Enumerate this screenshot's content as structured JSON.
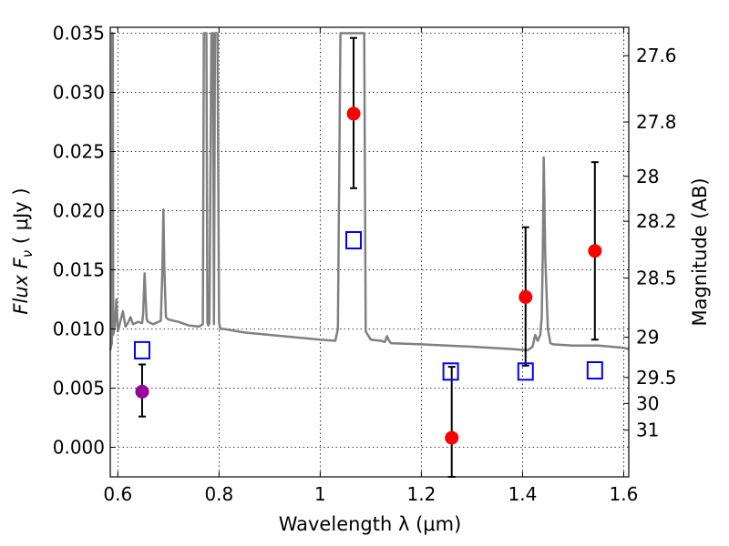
{
  "chart_data": {
    "type": "line",
    "title": "",
    "xlabel": "Wavelength  λ (μm)",
    "ylabel": "Flux  F",
    "ylabel_sub": "ν",
    "ylabel_unit": " ( μJy )",
    "y2label": "Magnitude (AB)",
    "xlim": [
      0.585,
      1.61
    ],
    "ylim": [
      -0.0025,
      0.0355
    ],
    "grid": true,
    "x_ticks": [
      0.6,
      0.8,
      1.0,
      1.2,
      1.4,
      1.6
    ],
    "x_tick_labels": [
      "0.6",
      "0.8",
      "1",
      "1.2",
      "1.4",
      "1.6"
    ],
    "y_ticks": [
      0.0,
      0.005,
      0.01,
      0.015,
      0.02,
      0.025,
      0.03,
      0.035
    ],
    "y_tick_labels": [
      "0.000",
      "0.005",
      "0.010",
      "0.015",
      "0.020",
      "0.025",
      "0.030",
      "0.035"
    ],
    "y2_ticks": [
      {
        "flux": 0.00145,
        "label": "31"
      },
      {
        "flux": 0.0037,
        "label": "30"
      },
      {
        "flux": 0.0059,
        "label": "29.5"
      },
      {
        "flux": 0.0093,
        "label": "29"
      },
      {
        "flux": 0.0143,
        "label": "28.5"
      },
      {
        "flux": 0.0191,
        "label": "28.2"
      },
      {
        "flux": 0.0229,
        "label": "28"
      },
      {
        "flux": 0.0275,
        "label": "27.8"
      },
      {
        "flux": 0.0331,
        "label": "27.6"
      }
    ],
    "colors": {
      "sed": "#808080",
      "observed": "#ff0000",
      "observed_alt": "#990099",
      "model": "#0000ff",
      "errorbar": "#000000",
      "grid": "#000000"
    },
    "series": [
      {
        "kind": "sed_line",
        "x": [
          0.585,
          0.588,
          0.589,
          0.59,
          0.591,
          0.594,
          0.597,
          0.6,
          0.61,
          0.615,
          0.62,
          0.625,
          0.63,
          0.64,
          0.648,
          0.65,
          0.653,
          0.655,
          0.657,
          0.66,
          0.67,
          0.68,
          0.685,
          0.688,
          0.69,
          0.692,
          0.695,
          0.7,
          0.72,
          0.74,
          0.76,
          0.768,
          0.77,
          0.772,
          0.775,
          0.777,
          0.779,
          0.781,
          0.785,
          0.788,
          0.79,
          0.792,
          0.795,
          0.797,
          0.8,
          0.803,
          0.81,
          0.85,
          0.9,
          0.95,
          1.0,
          1.03,
          1.035,
          1.04,
          1.06,
          1.08,
          1.087,
          1.09,
          1.1,
          1.12,
          1.128,
          1.132,
          1.136,
          1.14,
          1.2,
          1.3,
          1.38,
          1.41,
          1.42,
          1.425,
          1.43,
          1.435,
          1.438,
          1.44,
          1.442,
          1.445,
          1.45,
          1.455,
          1.46,
          1.5,
          1.55,
          1.6,
          1.61
        ],
        "y": [
          0.0082,
          0.0088,
          0.035,
          0.035,
          0.0095,
          0.0103,
          0.0125,
          0.0098,
          0.0115,
          0.0102,
          0.0105,
          0.011,
          0.0104,
          0.0106,
          0.0105,
          0.0113,
          0.0147,
          0.0125,
          0.0108,
          0.0106,
          0.0104,
          0.0106,
          0.0107,
          0.015,
          0.0201,
          0.015,
          0.011,
          0.0108,
          0.0106,
          0.0103,
          0.0102,
          0.0104,
          0.035,
          0.035,
          0.035,
          0.0105,
          0.0103,
          0.0105,
          0.035,
          0.035,
          0.0104,
          0.035,
          0.035,
          0.035,
          0.0105,
          0.01,
          0.01,
          0.0097,
          0.0095,
          0.0093,
          0.0091,
          0.009,
          0.01,
          0.035,
          0.035,
          0.035,
          0.035,
          0.0098,
          0.0091,
          0.009,
          0.0089,
          0.0094,
          0.009,
          0.0088,
          0.0087,
          0.0085,
          0.0083,
          0.0082,
          0.0085,
          0.0095,
          0.009,
          0.0095,
          0.011,
          0.016,
          0.0245,
          0.016,
          0.01,
          0.0088,
          0.0087,
          0.0086,
          0.0086,
          0.0084,
          0.0083
        ]
      },
      {
        "kind": "model",
        "x": [
          0.648,
          1.066,
          1.258,
          1.406,
          1.543
        ],
        "y": [
          0.0082,
          0.0175,
          0.0064,
          0.0064,
          0.0065
        ]
      },
      {
        "kind": "observed",
        "points": [
          {
            "x": 0.648,
            "y": 0.0047,
            "err_low": 0.0026,
            "err_high": 0.007,
            "color_key": "observed_alt"
          },
          {
            "x": 1.066,
            "y": 0.0282,
            "err_low": 0.0219,
            "err_high": 0.0346,
            "color_key": "observed"
          },
          {
            "x": 1.26,
            "y": 0.0008,
            "err_low": -0.0025,
            "err_high": 0.0068,
            "color_key": "observed"
          },
          {
            "x": 1.406,
            "y": 0.0127,
            "err_low": 0.0069,
            "err_high": 0.0186,
            "color_key": "observed"
          },
          {
            "x": 1.543,
            "y": 0.0166,
            "err_low": 0.0091,
            "err_high": 0.0241,
            "color_key": "observed"
          }
        ]
      }
    ]
  }
}
